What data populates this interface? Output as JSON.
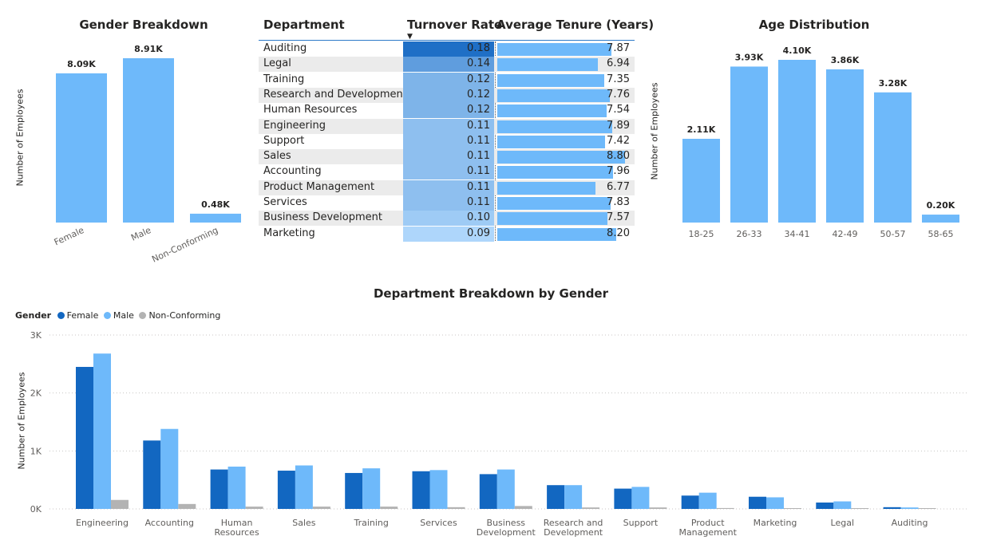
{
  "gender_chart": {
    "title": "Gender Breakdown",
    "ylabel": "Number of Employees",
    "color": "#6eb9fa"
  },
  "table": {
    "headers": {
      "department": "Department",
      "turnover": "Turnover Rate",
      "tenure": "Average Tenure (Years)"
    },
    "sort_icon": "sort-descending-caret",
    "rows": [
      {
        "department": "Auditing",
        "turnover": "0.18",
        "tenure": "7.87"
      },
      {
        "department": "Legal",
        "turnover": "0.14",
        "tenure": "6.94"
      },
      {
        "department": "Training",
        "turnover": "0.12",
        "tenure": "7.35"
      },
      {
        "department": "Research and Development",
        "turnover": "0.12",
        "tenure": "7.76"
      },
      {
        "department": "Human Resources",
        "turnover": "0.12",
        "tenure": "7.54"
      },
      {
        "department": "Engineering",
        "turnover": "0.11",
        "tenure": "7.89"
      },
      {
        "department": "Support",
        "turnover": "0.11",
        "tenure": "7.42"
      },
      {
        "department": "Sales",
        "turnover": "0.11",
        "tenure": "8.80"
      },
      {
        "department": "Accounting",
        "turnover": "0.11",
        "tenure": "7.96"
      },
      {
        "department": "Product Management",
        "turnover": "0.11",
        "tenure": "6.77"
      },
      {
        "department": "Services",
        "turnover": "0.11",
        "tenure": "7.83"
      },
      {
        "department": "Business Development",
        "turnover": "0.10",
        "tenure": "7.57"
      },
      {
        "department": "Marketing",
        "turnover": "0.09",
        "tenure": "8.20"
      }
    ],
    "colors": {
      "turnover_dark": "#1f6fc6",
      "turnover_light": "#aed6fb",
      "tenure_bar": "#6eb9fa",
      "row_alt": "#ebebeb"
    }
  },
  "age_chart": {
    "title": "Age Distribution",
    "ylabel": "Number of Employees",
    "color": "#6eb9fa"
  },
  "dept_chart": {
    "title": "Department Breakdown by Gender",
    "ylabel": "Number of Employees",
    "legend_title": "Gender",
    "colors": {
      "Female": "#1267c1",
      "Male": "#6eb9fa",
      "Non-Conforming": "#b3b3b3"
    }
  },
  "chart_data": [
    {
      "type": "bar",
      "title": "Gender Breakdown",
      "ylabel": "Number of Employees",
      "categories": [
        "Female",
        "Male",
        "Non-Conforming"
      ],
      "values": [
        8090,
        8910,
        480
      ],
      "data_labels": [
        "8.09K",
        "8.91K",
        "0.48K"
      ],
      "ylim": [
        0,
        9000
      ]
    },
    {
      "type": "table",
      "columns": [
        "Department",
        "Turnover Rate",
        "Average Tenure (Years)"
      ],
      "sorted_by": "Turnover Rate",
      "departments": [
        "Auditing",
        "Legal",
        "Training",
        "Research and Development",
        "Human Resources",
        "Engineering",
        "Support",
        "Sales",
        "Accounting",
        "Product Management",
        "Services",
        "Business Development",
        "Marketing"
      ],
      "turnover_rate": [
        0.18,
        0.14,
        0.12,
        0.12,
        0.12,
        0.11,
        0.11,
        0.11,
        0.11,
        0.11,
        0.11,
        0.1,
        0.09
      ],
      "average_tenure": [
        7.87,
        6.94,
        7.35,
        7.76,
        7.54,
        7.89,
        7.42,
        8.8,
        7.96,
        6.77,
        7.83,
        7.57,
        8.2
      ]
    },
    {
      "type": "bar",
      "title": "Age Distribution",
      "ylabel": "Number of Employees",
      "categories": [
        "18-25",
        "26-33",
        "34-41",
        "42-49",
        "50-57",
        "58-65"
      ],
      "values": [
        2110,
        3930,
        4100,
        3860,
        3280,
        200
      ],
      "data_labels": [
        "2.11K",
        "3.93K",
        "4.10K",
        "3.86K",
        "3.28K",
        "0.20K"
      ],
      "ylim": [
        0,
        4100
      ]
    },
    {
      "type": "bar",
      "title": "Department Breakdown by Gender",
      "ylabel": "Number of Employees",
      "categories": [
        "Engineering",
        "Accounting",
        "Human Resources",
        "Sales",
        "Training",
        "Services",
        "Business Development",
        "Research and Development",
        "Support",
        "Product Management",
        "Marketing",
        "Legal",
        "Auditing"
      ],
      "series": [
        {
          "name": "Female",
          "values": [
            2450,
            1180,
            680,
            660,
            620,
            650,
            600,
            410,
            350,
            230,
            210,
            110,
            30
          ]
        },
        {
          "name": "Male",
          "values": [
            2680,
            1380,
            730,
            750,
            700,
            670,
            680,
            410,
            380,
            280,
            200,
            130,
            25
          ]
        },
        {
          "name": "Non-Conforming",
          "values": [
            155,
            85,
            40,
            40,
            40,
            30,
            50,
            25,
            25,
            15,
            10,
            8,
            3
          ]
        }
      ],
      "yticks": [
        "0K",
        "1K",
        "2K",
        "3K"
      ],
      "ylim": [
        0,
        3000
      ],
      "legend": "top-left",
      "grid": true
    }
  ]
}
